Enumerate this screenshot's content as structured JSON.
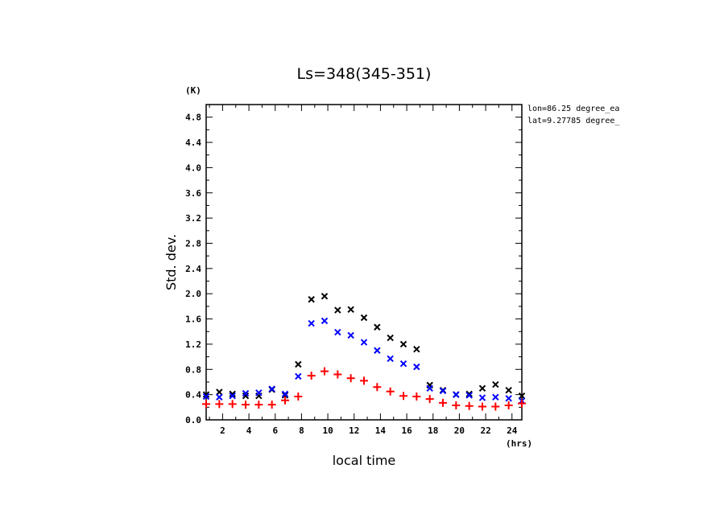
{
  "chart_data": {
    "type": "scatter",
    "title": "Ls=348(345-351)",
    "xlabel": "local time",
    "ylabel": "Std. dev.",
    "x_unit": "(hrs)",
    "y_unit": "(K)",
    "xlim": [
      0.75,
      24.75
    ],
    "ylim": [
      0,
      5.0
    ],
    "x_ticks": [
      2,
      4,
      6,
      8,
      10,
      12,
      14,
      16,
      18,
      20,
      22,
      24
    ],
    "x_tick_labels": [
      "2",
      "4",
      "6",
      "8",
      "10",
      "12",
      "14",
      "16",
      "18",
      "20",
      "22",
      "24"
    ],
    "y_ticks": [
      0.0,
      0.4,
      0.8,
      1.2,
      1.6,
      2.0,
      2.4,
      2.8,
      3.2,
      3.6,
      4.0,
      4.4,
      4.8
    ],
    "y_tick_labels": [
      "0.0",
      "0.4",
      "0.8",
      "1.2",
      "1.6",
      "2.0",
      "2.4",
      "2.8",
      "3.2",
      "3.6",
      "4.0",
      "4.4",
      "4.8"
    ],
    "grid": false,
    "annotations": [
      "lon=86.25 degree_ea",
      "lat=9.27785 degree_"
    ],
    "x": [
      0.75,
      1.75,
      2.75,
      3.75,
      4.75,
      5.75,
      6.75,
      7.75,
      8.75,
      9.75,
      10.75,
      11.75,
      12.75,
      13.75,
      14.75,
      15.75,
      16.75,
      17.75,
      18.75,
      19.75,
      20.75,
      21.75,
      22.75,
      23.75,
      24.75
    ],
    "series": [
      {
        "marker": "x",
        "color": "#000000",
        "values": [
          0.4,
          0.44,
          0.41,
          0.38,
          0.38,
          0.48,
          0.39,
          0.88,
          1.91,
          1.96,
          1.74,
          1.75,
          1.62,
          1.47,
          1.3,
          1.2,
          1.12,
          0.55,
          0.47,
          0.4,
          0.41,
          0.5,
          0.56,
          0.47,
          0.38
        ]
      },
      {
        "marker": "x",
        "color": "#0000ff",
        "values": [
          0.37,
          0.36,
          0.38,
          0.42,
          0.43,
          0.49,
          0.41,
          0.69,
          1.53,
          1.57,
          1.39,
          1.34,
          1.23,
          1.1,
          0.97,
          0.89,
          0.84,
          0.5,
          0.46,
          0.4,
          0.39,
          0.35,
          0.36,
          0.34,
          0.3
        ]
      },
      {
        "marker": "+",
        "color": "#ff0000",
        "values": [
          0.25,
          0.25,
          0.25,
          0.24,
          0.24,
          0.24,
          0.31,
          0.37,
          0.7,
          0.77,
          0.72,
          0.66,
          0.62,
          0.52,
          0.45,
          0.38,
          0.37,
          0.33,
          0.27,
          0.23,
          0.22,
          0.21,
          0.21,
          0.23,
          0.26
        ]
      }
    ]
  }
}
